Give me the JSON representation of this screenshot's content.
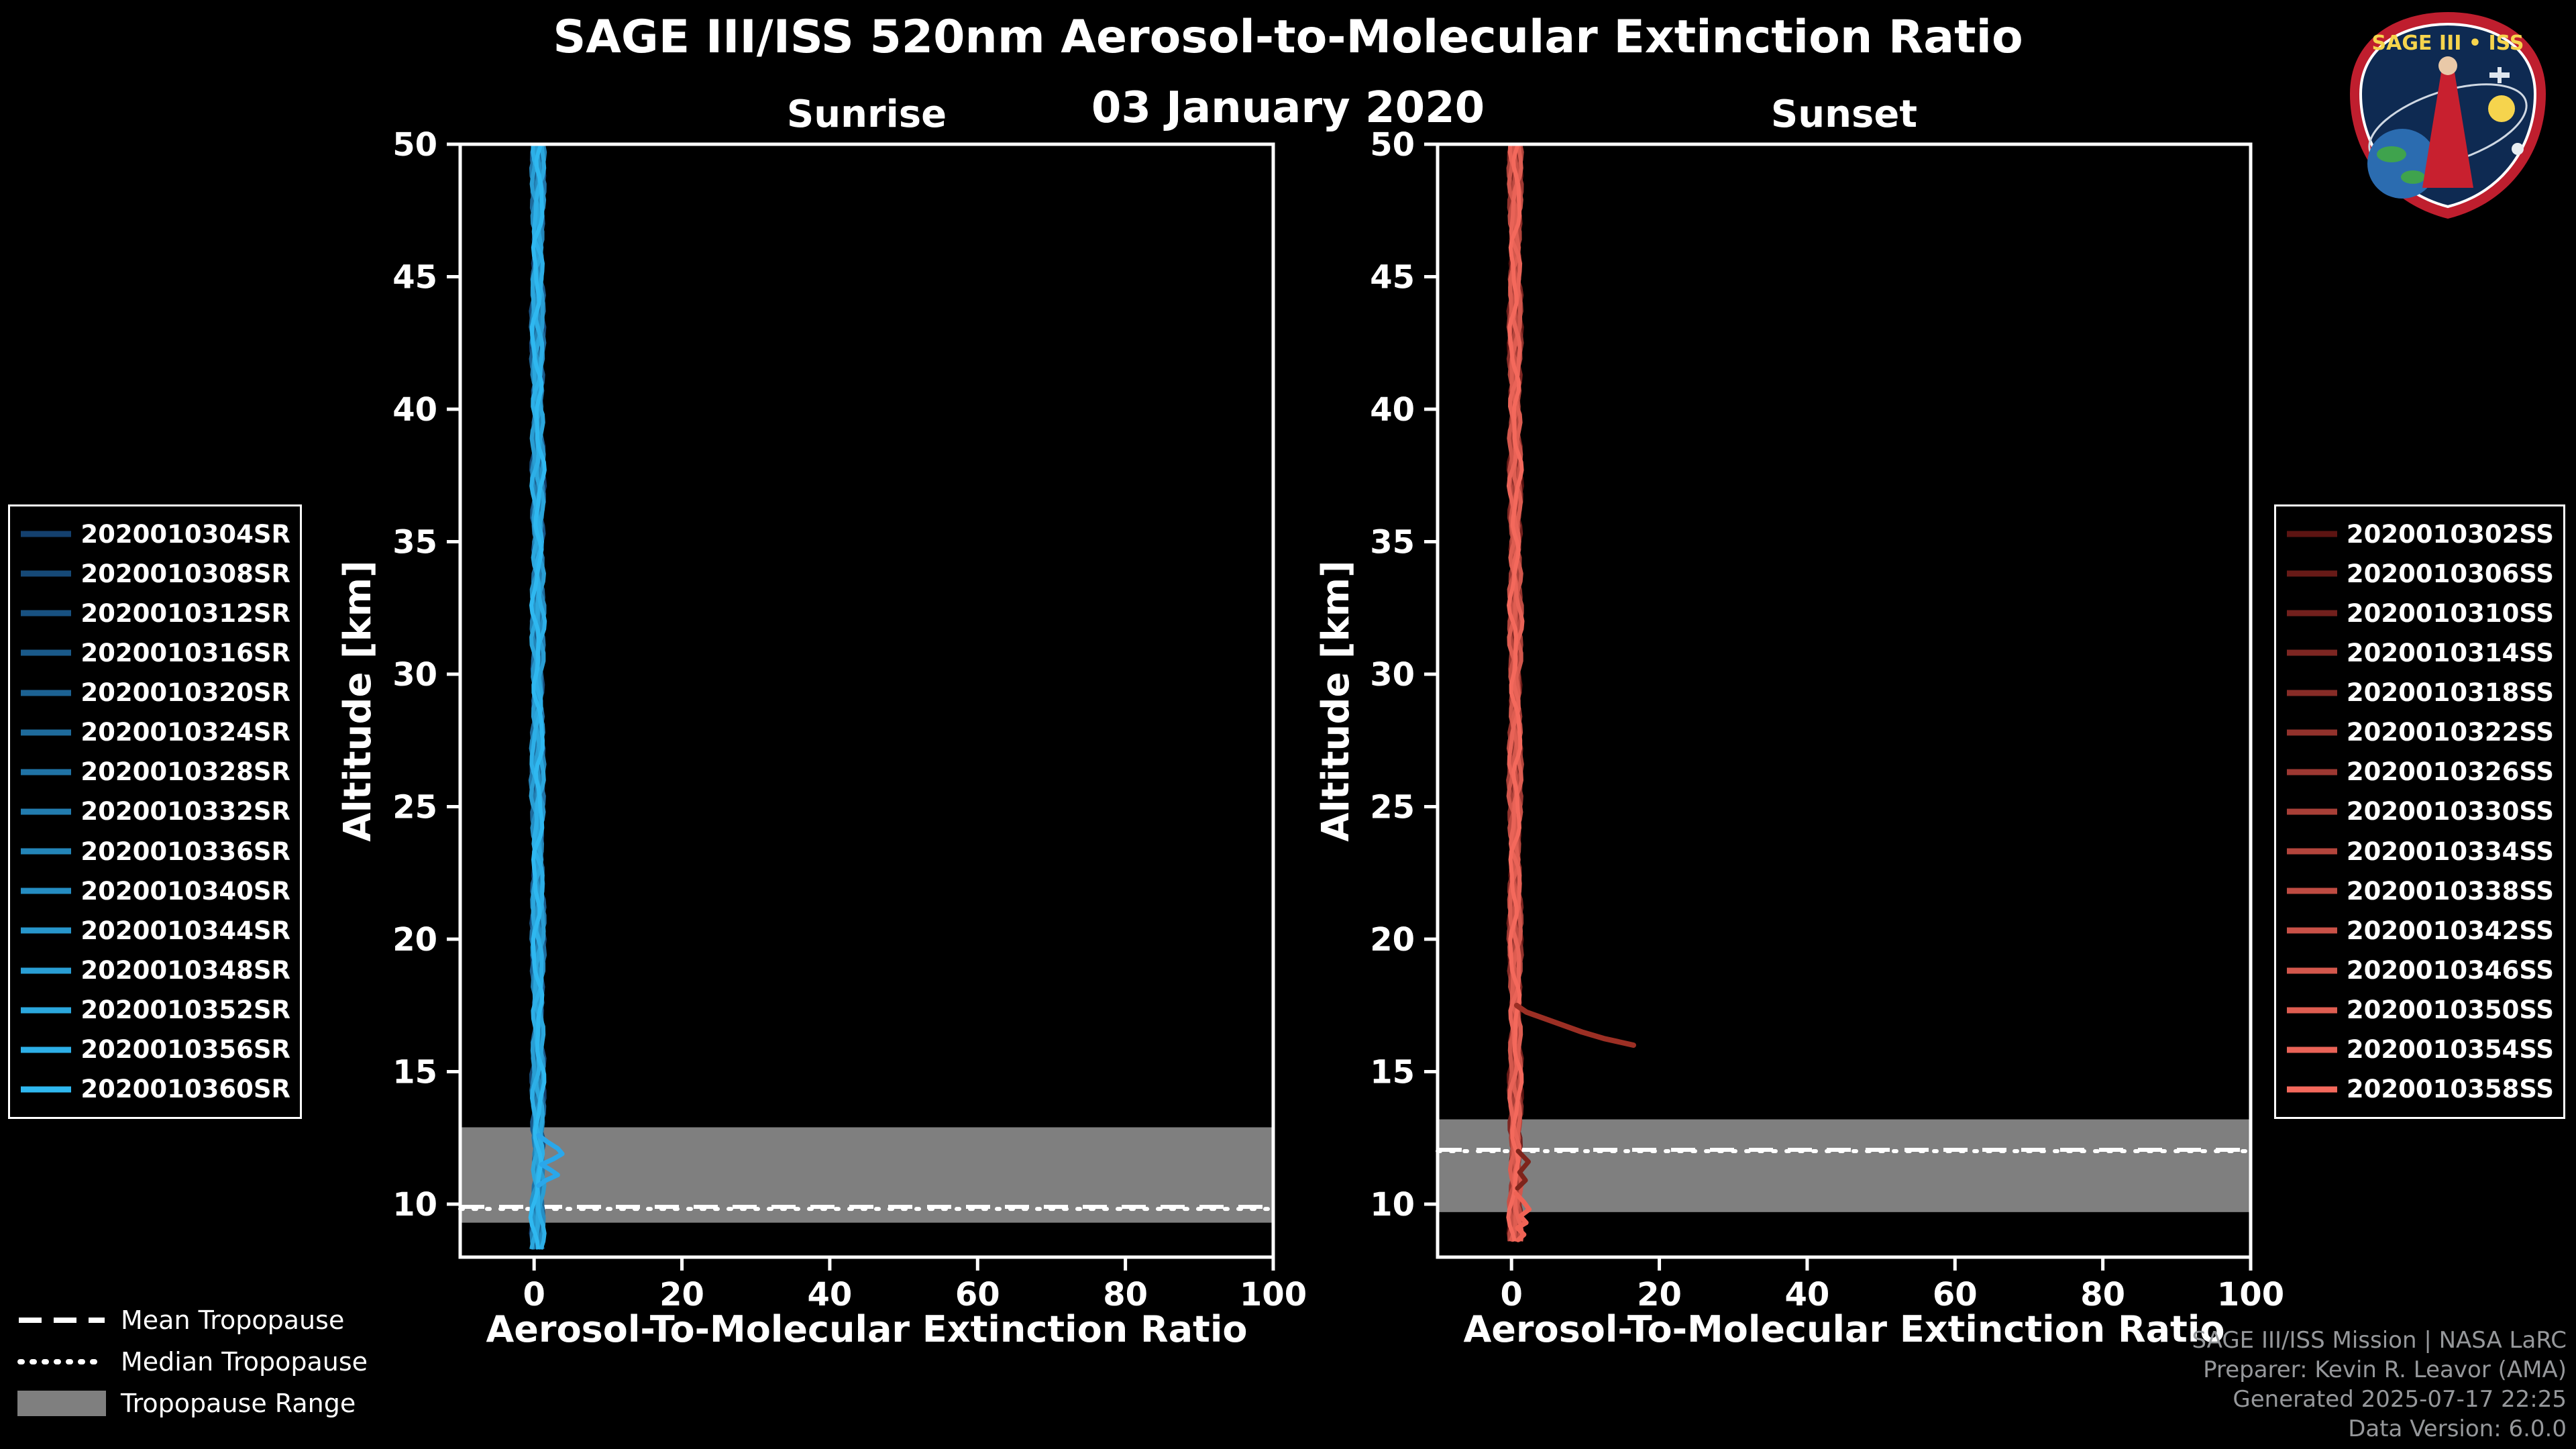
{
  "chart_data": {
    "type": "line",
    "title": "SAGE III/ISS 520nm Aerosol-to-Molecular Extinction Ratio",
    "subtitle": "03 January 2020",
    "xlabel": "Aerosol-To-Molecular Extinction Ratio",
    "ylabel": "Altitude [km]",
    "xlim": [
      -10,
      100
    ],
    "ylim": [
      8,
      50
    ],
    "x_ticks": [
      0,
      20,
      40,
      60,
      80,
      100
    ],
    "y_ticks": [
      10,
      15,
      20,
      25,
      30,
      35,
      40,
      45,
      50
    ],
    "grid": false,
    "legend_position": "outside-left-and-right",
    "tropopause_legend": {
      "mean": "Mean Tropopause",
      "median": "Median Tropopause",
      "range": "Tropopause Range",
      "band_color": "#7f7f7f"
    },
    "panels": [
      {
        "id": "sunrise",
        "title": "Sunrise",
        "color_dark": "#14406e",
        "color_bright": "#2fb8f0",
        "profile_bottom_km": 8.3,
        "series": [
          "2020010304SR",
          "2020010308SR",
          "2020010312SR",
          "2020010316SR",
          "2020010320SR",
          "2020010324SR",
          "2020010328SR",
          "2020010332SR",
          "2020010336SR",
          "2020010340SR",
          "2020010344SR",
          "2020010348SR",
          "2020010352SR",
          "2020010356SR",
          "2020010360SR"
        ],
        "tropopause": {
          "mean_km": 9.9,
          "median_km": 9.82,
          "range_km": [
            9.3,
            12.9
          ]
        },
        "base_profile": [
          [
            8.3,
            0.5
          ],
          [
            9.5,
            0.45
          ],
          [
            10.5,
            0.55
          ],
          [
            11.5,
            0.6
          ],
          [
            12.5,
            0.55
          ],
          [
            14,
            0.5
          ],
          [
            16,
            0.55
          ],
          [
            18,
            0.5
          ],
          [
            20,
            0.55
          ],
          [
            23,
            0.5
          ],
          [
            26,
            0.45
          ],
          [
            30,
            0.5
          ],
          [
            34,
            0.55
          ],
          [
            38,
            0.5
          ],
          [
            42,
            0.45
          ],
          [
            46,
            0.5
          ],
          [
            50,
            0.55
          ]
        ],
        "features": [
          {
            "name": "aerosol-bulge-line",
            "color": "#2aa7ea",
            "width": 7,
            "points_alt_x": [
              [
                12.6,
                0.6
              ],
              [
                12.35,
                1.8
              ],
              [
                12.1,
                3.2
              ],
              [
                11.9,
                3.8
              ],
              [
                11.7,
                2.6
              ],
              [
                11.5,
                1.0
              ],
              [
                11.3,
                2.2
              ],
              [
                11.1,
                3.2
              ],
              [
                10.9,
                1.6
              ],
              [
                10.7,
                0.6
              ]
            ]
          }
        ]
      },
      {
        "id": "sunset",
        "title": "Sunset",
        "color_dark": "#5c1412",
        "color_bright": "#f4695c",
        "profile_bottom_km": 8.6,
        "series": [
          "2020010302SS",
          "2020010306SS",
          "2020010310SS",
          "2020010314SS",
          "2020010318SS",
          "2020010322SS",
          "2020010326SS",
          "2020010330SS",
          "2020010334SS",
          "2020010338SS",
          "2020010342SS",
          "2020010346SS",
          "2020010350SS",
          "2020010354SS",
          "2020010358SS"
        ],
        "tropopause": {
          "mean_km": 12.05,
          "median_km": 12.0,
          "range_km": [
            9.7,
            13.2
          ]
        },
        "base_profile": [
          [
            8.6,
            0.5
          ],
          [
            10,
            0.5
          ],
          [
            12,
            0.55
          ],
          [
            14,
            0.5
          ],
          [
            16,
            0.55
          ],
          [
            18,
            0.5
          ],
          [
            20,
            0.5
          ],
          [
            24,
            0.45
          ],
          [
            28,
            0.5
          ],
          [
            32,
            0.55
          ],
          [
            36,
            0.5
          ],
          [
            40,
            0.45
          ],
          [
            44,
            0.5
          ],
          [
            48,
            0.5
          ],
          [
            50,
            0.5
          ]
        ],
        "features": [
          {
            "name": "enhanced-aerosol-layer-line",
            "color": "#9c2f24",
            "width": 8,
            "points_alt_x": [
              [
                17.5,
                0.7
              ],
              [
                17.25,
                2.0
              ],
              [
                17.0,
                4.5
              ],
              [
                16.75,
                7.0
              ],
              [
                16.5,
                9.5
              ],
              [
                16.25,
                12.5
              ],
              [
                16.0,
                16.5
              ]
            ]
          },
          {
            "name": "mid-level-wiggle-line",
            "color": "#7e241b",
            "width": 7,
            "points_alt_x": [
              [
                12.0,
                0.9
              ],
              [
                11.6,
                2.3
              ],
              [
                11.2,
                1.1
              ],
              [
                10.9,
                1.9
              ],
              [
                10.6,
                0.8
              ]
            ]
          },
          {
            "name": "low-level-wiggle-line",
            "color": "#ef6355",
            "width": 7,
            "points_alt_x": [
              [
                10.4,
                0.6
              ],
              [
                10.1,
                1.6
              ],
              [
                9.8,
                2.4
              ],
              [
                9.55,
                1.2
              ],
              [
                9.3,
                2.0
              ],
              [
                9.1,
                0.8
              ],
              [
                8.85,
                1.7
              ],
              [
                8.65,
                0.9
              ]
            ]
          }
        ]
      }
    ]
  },
  "footer": {
    "lines": [
      "SAGE III/ISS Mission | NASA LaRC",
      "Preparer: Kevin R. Leavor (AMA)",
      "Generated 2025-07-17 22:25",
      "Data Version: 6.0.0"
    ]
  },
  "logo": {
    "title": "SAGE III • ISS"
  }
}
